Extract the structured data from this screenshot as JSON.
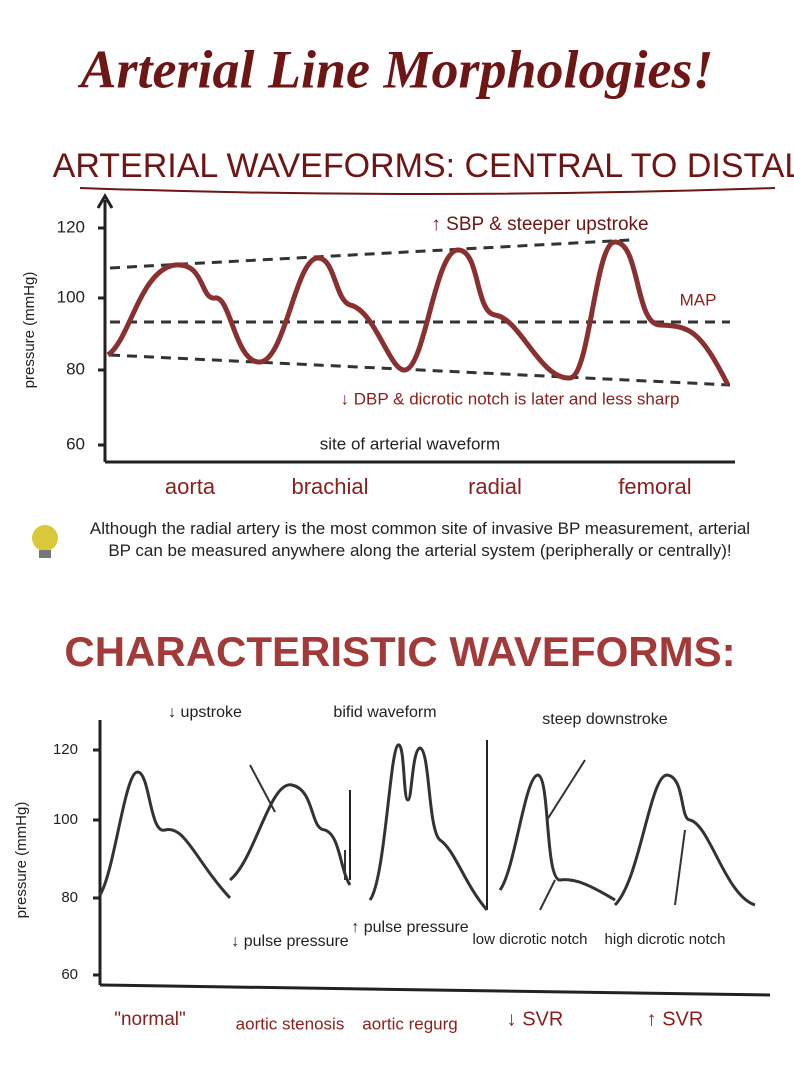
{
  "title": "Arterial Line Morphologies!",
  "section1": {
    "title": "ARTERIAL WAVEFORMS: CENTRAL TO DISTAL",
    "annotations": {
      "sbp": "↑ SBP & steeper upstroke",
      "map": "MAP",
      "dbp": "↓ DBP & dicrotic notch is later and less sharp"
    },
    "y_label": "pressure (mmHg)",
    "y_ticks": [
      "120",
      "100",
      "80",
      "60"
    ],
    "x_label": "site of arterial waveform",
    "sites": [
      "aorta",
      "brachial",
      "radial",
      "femoral"
    ]
  },
  "tip": "Although the radial artery is the most common site of invasive BP measurement, arterial BP can be measured anywhere along the arterial system (peripherally or centrally)!",
  "section2": {
    "title": "CHARACTERISTIC WAVEFORMS:",
    "y_label": "pressure (mmHg)",
    "y_ticks": [
      "120",
      "100",
      "80",
      "60"
    ],
    "annotations": {
      "upstroke": "↓ upstroke",
      "bifid": "bifid waveform",
      "downstroke": "steep downstroke",
      "low_pp": "↓ pulse pressure",
      "high_pp": "↑ pulse pressure",
      "low_notch": "low dicrotic notch",
      "high_notch": "high dicrotic notch"
    },
    "categories": [
      "\"normal\"",
      "aortic stenosis",
      "aortic regurg",
      "↓ SVR",
      "↑ SVR"
    ]
  }
}
